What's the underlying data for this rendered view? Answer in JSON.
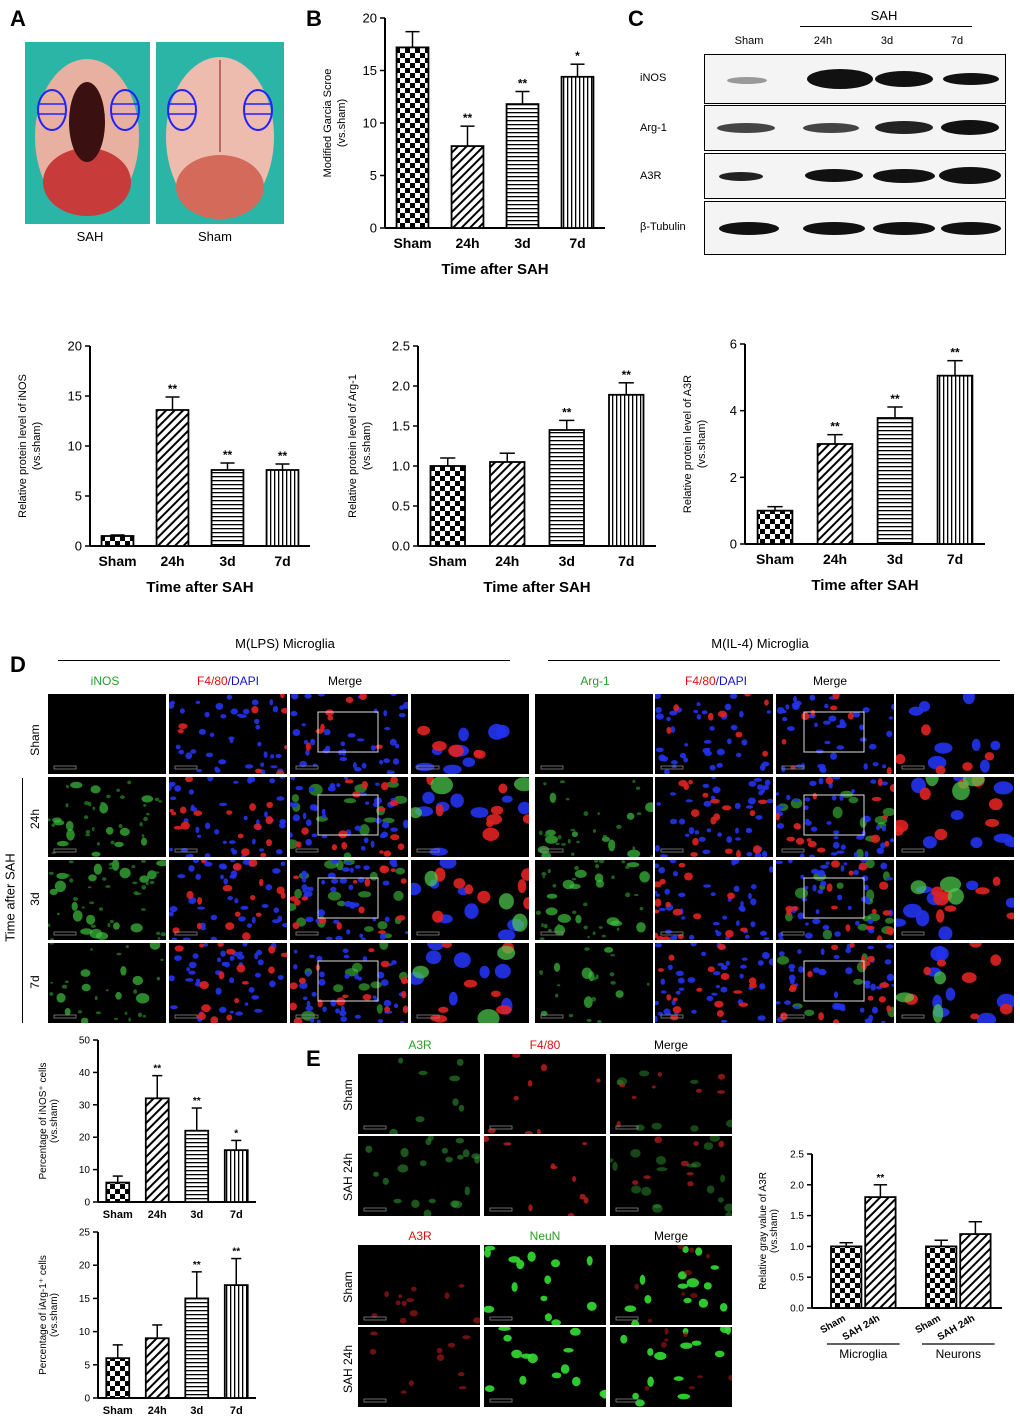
{
  "panels": {
    "a": "A",
    "b": "B",
    "c": "C",
    "d": "D",
    "e": "E"
  },
  "panel_a": {
    "label_left": "SAH",
    "label_right": "Sham"
  },
  "panel_c": {
    "group_header": "SAH",
    "lanes": [
      "Sham",
      "24h",
      "3d",
      "7d"
    ],
    "rows": [
      "iNOS",
      "Arg-1",
      "A3R",
      "β-Tubulin"
    ],
    "band_intensity": {
      "iNOS": [
        0.15,
        1.0,
        0.85,
        0.75
      ],
      "Arg-1": [
        0.55,
        0.55,
        0.75,
        0.9
      ],
      "A3R": [
        0.6,
        0.8,
        0.85,
        0.95
      ],
      "β-Tubulin": [
        0.85,
        0.85,
        0.85,
        0.85
      ]
    }
  },
  "panel_d": {
    "header_left": "M(LPS) Microglia",
    "header_right": "M(IL-4) Microglia",
    "col_left": [
      "iNOS",
      "F4/80",
      "/DAPI",
      "Merge"
    ],
    "col_right": [
      "Arg-1",
      "F4/80",
      "/DAPI",
      "Merge"
    ],
    "row_labels": [
      "Sham",
      "24h",
      "3d",
      "7d"
    ],
    "side_label": "Time after SAH"
  },
  "panel_e": {
    "top_cols": [
      "A3R",
      "F4/80",
      "Merge"
    ],
    "bottom_cols": [
      "A3R",
      "NeuN",
      "Merge"
    ],
    "row_labels": [
      "Sham",
      "SAH 24h"
    ]
  },
  "chart_data": [
    {
      "id": "B",
      "type": "bar",
      "categories": [
        "Sham",
        "24h",
        "3d",
        "7d"
      ],
      "values": [
        17.2,
        7.8,
        11.8,
        14.4
      ],
      "errors": [
        1.5,
        1.9,
        1.2,
        1.2
      ],
      "significance": [
        "",
        "**",
        "**",
        "*"
      ],
      "ylabel": "Modified Garcia Scroe\n(vs.sham)",
      "xlabel": "Time after SAH",
      "ylim": [
        0,
        20
      ],
      "yticks": [
        0,
        5,
        10,
        15,
        20
      ],
      "patterns": [
        "checker",
        "diag",
        "hlines",
        "vlines"
      ]
    },
    {
      "id": "iNOS",
      "type": "bar",
      "categories": [
        "Sham",
        "24h",
        "3d",
        "7d"
      ],
      "values": [
        1.0,
        13.6,
        7.6,
        7.6
      ],
      "errors": [
        0.1,
        1.3,
        0.7,
        0.6
      ],
      "significance": [
        "",
        "**",
        "**",
        "**"
      ],
      "ylabel": "Relative protein level of iNOS\n(vs.sham)",
      "xlabel": "Time after SAH",
      "ylim": [
        0,
        20
      ],
      "yticks": [
        0,
        5,
        10,
        15,
        20
      ],
      "patterns": [
        "checker",
        "diag",
        "hlines",
        "vlines"
      ]
    },
    {
      "id": "Arg1",
      "type": "bar",
      "categories": [
        "Sham",
        "24h",
        "3d",
        "7d"
      ],
      "values": [
        1.0,
        1.05,
        1.45,
        1.89
      ],
      "errors": [
        0.1,
        0.11,
        0.12,
        0.15
      ],
      "significance": [
        "",
        "",
        "**",
        "**"
      ],
      "ylabel": "Relative protein level of Arg-1\n(vs.sham)",
      "xlabel": "Time after SAH",
      "ylim": [
        0,
        2.5
      ],
      "yticks": [
        "0.0",
        "0.5",
        "1.0",
        "1.5",
        "2.0",
        "2.5"
      ],
      "patterns": [
        "checker",
        "diag",
        "hlines",
        "vlines"
      ]
    },
    {
      "id": "A3R",
      "type": "bar",
      "categories": [
        "Sham",
        "24h",
        "3d",
        "7d"
      ],
      "values": [
        1.0,
        3.0,
        3.78,
        5.05
      ],
      "errors": [
        0.12,
        0.28,
        0.33,
        0.45
      ],
      "significance": [
        "",
        "**",
        "**",
        "**"
      ],
      "ylabel": "Relative protein level of A3R\n(vs.sham)",
      "xlabel": "Time after SAH",
      "ylim": [
        0,
        6
      ],
      "yticks": [
        0,
        2,
        4,
        6
      ],
      "patterns": [
        "checker",
        "diag",
        "hlines",
        "vlines"
      ]
    },
    {
      "id": "pctiNOS",
      "type": "bar",
      "categories": [
        "Sham",
        "24h",
        "3d",
        "7d"
      ],
      "values": [
        6,
        32,
        22,
        16
      ],
      "errors": [
        2,
        7,
        7,
        3
      ],
      "significance": [
        "",
        "**",
        "**",
        "*"
      ],
      "ylabel": "Percentage of iNOS⁺ cells\n(vs.sham)",
      "xlabel": "",
      "ylim": [
        0,
        50
      ],
      "yticks": [
        0,
        10,
        20,
        30,
        40,
        50
      ],
      "patterns": [
        "checker",
        "diag",
        "hlines",
        "vlines"
      ]
    },
    {
      "id": "pctArg1",
      "type": "bar",
      "categories": [
        "Sham",
        "24h",
        "3d",
        "7d"
      ],
      "values": [
        6,
        9,
        15,
        17
      ],
      "errors": [
        2,
        2,
        4,
        4
      ],
      "significance": [
        "",
        "",
        "**",
        "**"
      ],
      "ylabel": "Percentage of iArg-1⁺ cells\n(vs.sham)",
      "xlabel": "",
      "ylim": [
        0,
        25
      ],
      "yticks": [
        0,
        5,
        10,
        15,
        20,
        25
      ],
      "patterns": [
        "checker",
        "diag",
        "hlines",
        "vlines"
      ]
    },
    {
      "id": "A3Rgray",
      "type": "bar",
      "categories": [
        "Sham",
        "SAH 24h",
        "Sham",
        "SAH 24h"
      ],
      "groups": [
        "Microglia",
        "Neurons"
      ],
      "values": [
        1.0,
        1.8,
        1.0,
        1.2
      ],
      "errors": [
        0.06,
        0.2,
        0.1,
        0.2
      ],
      "significance": [
        "",
        "**",
        "",
        ""
      ],
      "ylabel": "Relative gray value of A3R\n(vs.sham)",
      "xlabel": "",
      "ylim": [
        0,
        2.5
      ],
      "yticks": [
        "0.0",
        "0.5",
        "1.0",
        "1.5",
        "2.0",
        "2.5"
      ],
      "patterns": [
        "checker",
        "diag",
        "checker",
        "diag"
      ]
    }
  ]
}
